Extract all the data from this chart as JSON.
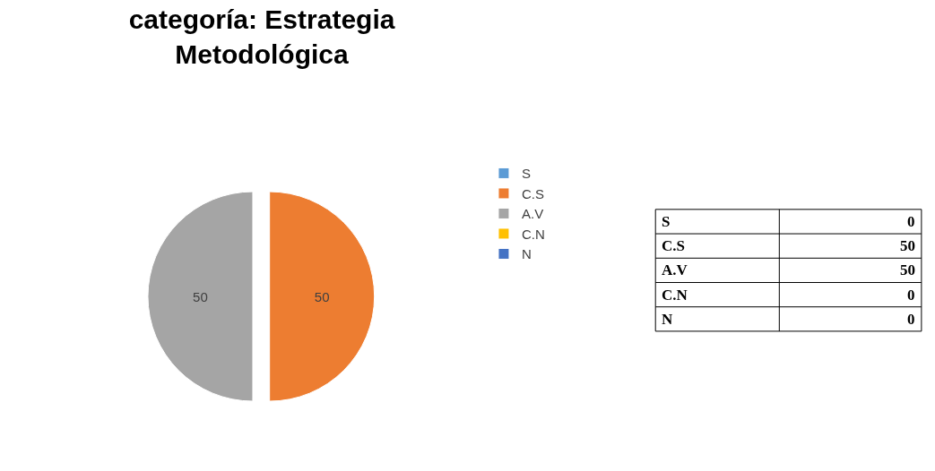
{
  "chart_data": [
    {
      "type": "pie",
      "title": "categoría: Estrategia Metodológica",
      "categories": [
        "S",
        "C.S",
        "A.V",
        "C.N",
        "N"
      ],
      "values": [
        0,
        50,
        50,
        0,
        0
      ],
      "colors": [
        "#5b9bd5",
        "#ed7d31",
        "#a5a5a5",
        "#ffc000",
        "#4472c4"
      ],
      "data_labels": true,
      "legend": "right"
    },
    {
      "type": "other",
      "categories": [
        "S",
        "C.S",
        "A.V",
        "C.N",
        "N"
      ],
      "values": [
        0,
        50,
        50,
        0,
        0
      ],
      "data_labels": true
    }
  ]
}
